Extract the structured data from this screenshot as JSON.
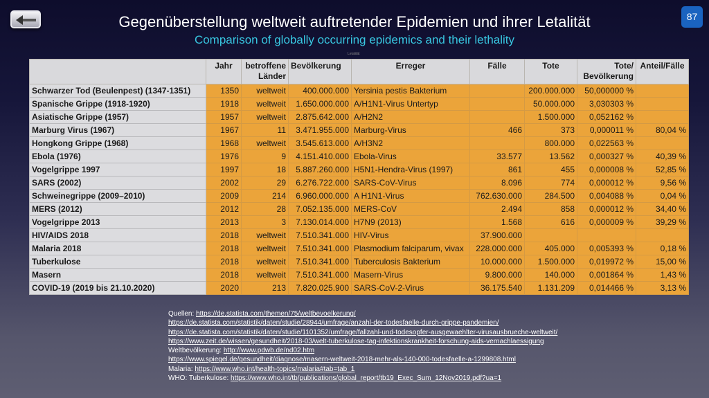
{
  "page_number": "87",
  "title": "Gegenüberstellung weltweit auftretender Epidemien und ihrer Letalität",
  "subtitle": "Comparison of globally occurring epidemics and their lethality",
  "tiny_label": "Letalität",
  "table": {
    "headers": [
      "",
      "Jahr",
      "betroffene Länder",
      "Bevölkerung",
      "Erreger",
      "Fälle",
      "Tote",
      "Tote/ Bevölkerung",
      "Anteil/Fälle"
    ],
    "rows": [
      [
        "Schwarzer Tod (Beulenpest) (1347-1351)",
        "1350",
        "weltweit",
        "400.000.000",
        "Yersinia pestis Bakterium",
        "",
        "200.000.000",
        "50,000000 %",
        ""
      ],
      [
        "Spanische Grippe (1918-1920)",
        "1918",
        "weltweit",
        "1.650.000.000",
        "A/H1N1-Virus Untertyp",
        "",
        "50.000.000",
        "3,030303 %",
        ""
      ],
      [
        "Asiatische Grippe (1957)",
        "1957",
        "weltweit",
        "2.875.642.000",
        "A/H2N2",
        "",
        "1.500.000",
        "0,052162 %",
        ""
      ],
      [
        "Marburg Virus (1967)",
        "1967",
        "11",
        "3.471.955.000",
        "Marburg-Virus",
        "466",
        "373",
        "0,000011 %",
        "80,04 %"
      ],
      [
        "Hongkong Grippe (1968)",
        "1968",
        "weltweit",
        "3.545.613.000",
        "A/H3N2",
        "",
        "800.000",
        "0,022563 %",
        ""
      ],
      [
        "Ebola (1976)",
        "1976",
        "9",
        "4.151.410.000",
        "Ebola-Virus",
        "33.577",
        "13.562",
        "0,000327 %",
        "40,39 %"
      ],
      [
        "Vogelgrippe 1997",
        "1997",
        "18",
        "5.887.260.000",
        "H5N1-Hendra-Virus (1997)",
        "861",
        "455",
        "0,000008 %",
        "52,85 %"
      ],
      [
        "SARS (2002)",
        "2002",
        "29",
        "6.276.722.000",
        "SARS-CoV-Virus",
        "8.096",
        "774",
        "0,000012 %",
        "9,56 %"
      ],
      [
        "Schweinegrippe (2009–2010)",
        "2009",
        "214",
        "6.960.000.000",
        "A H1N1-Virus",
        "762.630.000",
        "284.500",
        "0,004088 %",
        "0,04 %"
      ],
      [
        "MERS (2012)",
        "2012",
        "28",
        "7.052.135.000",
        "MERS-CoV",
        "2.494",
        "858",
        "0,000012 %",
        "34,40 %"
      ],
      [
        "Vogelgrippe 2013",
        "2013",
        "3",
        "7.130.014.000",
        "H7N9 (2013)",
        "1.568",
        "616",
        "0,000009 %",
        "39,29 %"
      ],
      [
        "HIV/AIDS 2018",
        "2018",
        "weltweit",
        "7.510.341.000",
        "HIV-Virus",
        "37.900.000",
        "",
        "",
        ""
      ],
      [
        "Malaria 2018",
        "2018",
        "weltweit",
        "7.510.341.000",
        "Plasmodium falciparum, vivax",
        "228.000.000",
        "405.000",
        "0,005393 %",
        "0,18 %"
      ],
      [
        "Tuberkulose",
        "2018",
        "weltweit",
        "7.510.341.000",
        "Tuberculosis Bakterium",
        "10.000.000",
        "1.500.000",
        "0,019972 %",
        "15,00 %"
      ],
      [
        "Masern",
        "2018",
        "weltweit",
        "7.510.341.000",
        "Masern-Virus",
        "9.800.000",
        "140.000",
        "0,001864 %",
        "1,43 %"
      ],
      [
        "COVID-19 (2019 bis 21.10.2020)",
        "2020",
        "213",
        "7.820.025.900",
        "SARS-CoV-2-Virus",
        "36.175.540",
        "1.131.209",
        "0,014466 %",
        "3,13 %"
      ]
    ]
  },
  "sources": [
    {
      "prefix": "Quellen: ",
      "link": "https://de.statista.com/themen/75/weltbevoelkerung/"
    },
    {
      "prefix": "",
      "link": "https://de.statista.com/statistik/daten/studie/28944/umfrage/anzahl-der-todesfaelle-durch-grippe-pandemien/"
    },
    {
      "prefix": "",
      "link": "https://de.statista.com/statistik/daten/studie/1101352/umfrage/fallzahl-und-todesopfer-ausgewaehlter-virusausbrueche-weltweit/"
    },
    {
      "prefix": "",
      "link": "https://www.zeit.de/wissen/gesundheit/2018-03/welt-tuberkulose-tag-infektionskrankheit-forschung-aids-vernachlaessigung"
    },
    {
      "prefix": "Weltbevölkerung: ",
      "link": "http://www.pdwb.de/nd02.htm"
    },
    {
      "prefix": "",
      "link": "https://www.spiegel.de/gesundheit/diagnose/masern-weltweit-2018-mehr-als-140-000-todesfaelle-a-1299808.html"
    },
    {
      "prefix": "Malaria: ",
      "link": "https://www.who.int/health-topics/malaria#tab=tab_1"
    },
    {
      "prefix": "WHO: Tuberkulose: ",
      "link": "https://www.who.int/tb/publications/global_report/tb19_Exec_Sum_12Nov2019.pdf?ua=1"
    }
  ]
}
